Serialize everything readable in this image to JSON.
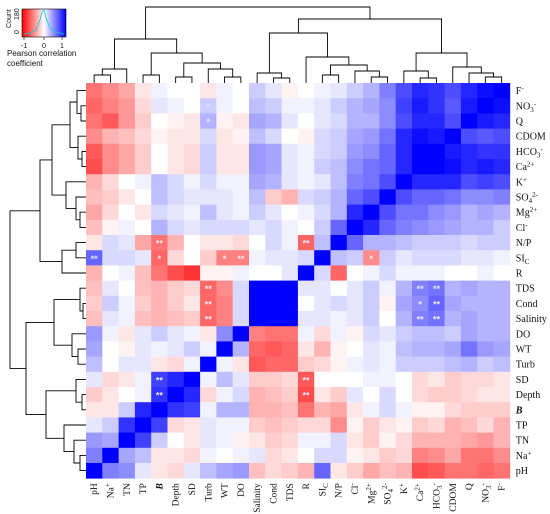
{
  "chart_data": {
    "type": "heatmap",
    "title": "",
    "color_key": {
      "title": "Pearson correlation coefficient",
      "title_lines": [
        "Pearson correlation",
        "coefficient"
      ],
      "y_label": "Count",
      "y_ticks": [
        "0",
        "180"
      ],
      "ticks": [
        "-1",
        "0",
        "1"
      ],
      "range": [
        -1,
        1
      ],
      "colors": {
        "neg": "#ff0000",
        "mid": "#ffffff",
        "pos": "#0000ff"
      }
    },
    "row_labels": [
      "F⁻",
      "NO₃⁻",
      "Q",
      "CDOM",
      "HCO₃⁻",
      "Ca²⁺",
      "K⁺",
      "SO₄²⁻",
      "Mg²⁺",
      "Cl⁻",
      "N/P",
      "SI_C",
      "R",
      "TDS",
      "Cond",
      "Salinity",
      "DO",
      "WT",
      "Turb",
      "SD",
      "Depth",
      "B",
      "TP",
      "TN",
      "Na⁺",
      "pH"
    ],
    "row_label_parts": [
      [
        "F",
        "-",
        ""
      ],
      [
        "NO",
        "-",
        "3"
      ],
      [
        "Q",
        "",
        ""
      ],
      [
        "CDOM",
        "",
        ""
      ],
      [
        "HCO",
        "-",
        "3"
      ],
      [
        "Ca",
        "2+",
        ""
      ],
      [
        "K",
        "+",
        ""
      ],
      [
        "SO",
        "2-",
        "4"
      ],
      [
        "Mg",
        "2+",
        ""
      ],
      [
        "Cl",
        "-",
        ""
      ],
      [
        "N/P",
        "",
        ""
      ],
      [
        "SI",
        "",
        "C"
      ],
      [
        "R",
        "",
        ""
      ],
      [
        "TDS",
        "",
        ""
      ],
      [
        "Cond",
        "",
        ""
      ],
      [
        "Salinity",
        "",
        ""
      ],
      [
        "DO",
        "",
        ""
      ],
      [
        "WT",
        "",
        ""
      ],
      [
        "Turb",
        "",
        ""
      ],
      [
        "SD",
        "",
        ""
      ],
      [
        "Depth",
        "",
        ""
      ],
      [
        "B",
        "",
        ""
      ],
      [
        "TP",
        "",
        ""
      ],
      [
        "TN",
        "",
        ""
      ],
      [
        "Na",
        "+",
        ""
      ],
      [
        "pH",
        "",
        ""
      ]
    ],
    "col_labels": [
      "pH",
      "Na⁺",
      "TN",
      "TP",
      "B",
      "Depth",
      "SD",
      "Turb",
      "WT",
      "DO",
      "Salinity",
      "Cond",
      "TDS",
      "R",
      "SI_C",
      "N/P",
      "Cl⁻",
      "Mg²⁺",
      "SO₄²⁻",
      "K⁺",
      "Ca²⁺",
      "HCO₃⁻",
      "CDOM",
      "Q",
      "NO₃⁻",
      "F⁻"
    ],
    "col_label_parts": [
      [
        "pH",
        "",
        ""
      ],
      [
        "Na",
        "+",
        ""
      ],
      [
        "TN",
        "",
        ""
      ],
      [
        "TP",
        "",
        ""
      ],
      [
        "B",
        "",
        ""
      ],
      [
        "Depth",
        "",
        ""
      ],
      [
        "SD",
        "",
        ""
      ],
      [
        "Turb",
        "",
        ""
      ],
      [
        "WT",
        "",
        ""
      ],
      [
        "DO",
        "",
        ""
      ],
      [
        "Salinity",
        "",
        ""
      ],
      [
        "Cond",
        "",
        ""
      ],
      [
        "TDS",
        "",
        ""
      ],
      [
        "R",
        "",
        ""
      ],
      [
        "SI",
        "",
        "C"
      ],
      [
        "N/P",
        "",
        ""
      ],
      [
        "Cl",
        "-",
        ""
      ],
      [
        "Mg",
        "2+",
        ""
      ],
      [
        "SO",
        "2-",
        "4"
      ],
      [
        "K",
        "+",
        ""
      ],
      [
        "Ca",
        "2+",
        ""
      ],
      [
        "HCO",
        "-",
        "3"
      ],
      [
        "CDOM",
        "",
        ""
      ],
      [
        "Q",
        "",
        ""
      ],
      [
        "NO",
        "-",
        "3"
      ],
      [
        "F",
        "-",
        ""
      ]
    ],
    "special_labels": {
      "B": "#1a1aa8",
      "R": "#cc1111"
    },
    "values": [
      [
        -0.55,
        -0.45,
        -0.35,
        -0.1,
        0.05,
        0.0,
        0.0,
        -0.1,
        0.05,
        0.0,
        0.2,
        0.1,
        -0.05,
        0.0,
        0.05,
        0.1,
        0.2,
        0.3,
        0.5,
        0.7,
        0.85,
        0.8,
        0.7,
        0.85,
        0.95,
        1.0
      ],
      [
        -0.6,
        -0.5,
        -0.4,
        -0.15,
        0.1,
        0.05,
        0.0,
        0.2,
        0.05,
        0.0,
        0.25,
        0.2,
        0.05,
        0.05,
        0.1,
        0.2,
        0.3,
        0.35,
        0.45,
        0.75,
        0.9,
        0.8,
        0.65,
        0.9,
        1.0,
        0.95
      ],
      [
        -0.55,
        -0.65,
        -0.4,
        -0.2,
        0.0,
        -0.05,
        -0.1,
        0.3,
        -0.05,
        -0.1,
        0.35,
        0.3,
        0.1,
        0.0,
        0.1,
        0.15,
        0.3,
        0.3,
        0.45,
        0.7,
        0.85,
        0.85,
        0.7,
        1.0,
        0.9,
        0.85
      ],
      [
        -0.45,
        -0.3,
        -0.25,
        -0.15,
        -0.05,
        -0.1,
        -0.1,
        0.15,
        -0.1,
        -0.05,
        0.25,
        0.15,
        0.0,
        -0.05,
        0.15,
        0.2,
        0.35,
        0.4,
        0.55,
        0.85,
        0.95,
        0.9,
        1.0,
        0.7,
        0.65,
        0.7
      ],
      [
        -0.65,
        -0.45,
        -0.35,
        -0.2,
        0.0,
        -0.1,
        -0.15,
        0.2,
        -0.1,
        -0.1,
        0.4,
        0.35,
        0.1,
        0.05,
        0.15,
        0.2,
        0.4,
        0.45,
        0.6,
        0.85,
        1.0,
        1.0,
        0.9,
        0.85,
        0.8,
        0.8
      ],
      [
        -0.7,
        -0.45,
        -0.35,
        -0.2,
        0.0,
        -0.1,
        -0.15,
        0.2,
        -0.1,
        -0.1,
        0.4,
        0.35,
        0.1,
        0.05,
        0.2,
        0.25,
        0.45,
        0.55,
        0.6,
        0.85,
        1.0,
        1.0,
        0.95,
        0.85,
        0.9,
        0.85
      ],
      [
        -0.3,
        -0.15,
        0.0,
        0.05,
        0.25,
        0.15,
        0.05,
        0.15,
        0.05,
        0.05,
        0.35,
        0.3,
        0.1,
        0.05,
        0.1,
        0.25,
        0.5,
        0.55,
        0.7,
        1.0,
        0.85,
        0.85,
        0.85,
        0.7,
        0.75,
        0.7
      ],
      [
        -0.25,
        -0.2,
        -0.1,
        0.0,
        0.25,
        0.15,
        0.1,
        0.1,
        0.1,
        0.05,
        0.25,
        -0.2,
        -0.3,
        0.15,
        0.2,
        0.3,
        0.6,
        0.7,
        1.0,
        0.7,
        0.6,
        0.6,
        0.55,
        0.45,
        0.45,
        0.5
      ],
      [
        -0.35,
        -0.15,
        0.0,
        -0.1,
        0.15,
        0.1,
        0.05,
        0.25,
        0.1,
        0.05,
        0.2,
        0.1,
        0.0,
        0.05,
        0.15,
        0.3,
        0.85,
        1.0,
        0.7,
        0.55,
        0.55,
        0.45,
        0.4,
        0.3,
        0.35,
        0.3
      ],
      [
        -0.25,
        -0.05,
        0.05,
        0.0,
        0.3,
        0.15,
        0.1,
        0.15,
        0.15,
        0.15,
        0.1,
        0.15,
        0.05,
        0.0,
        0.2,
        0.6,
        1.0,
        0.85,
        0.6,
        0.5,
        0.45,
        0.4,
        0.35,
        0.3,
        0.3,
        0.2
      ],
      [
        -0.1,
        0.15,
        0.1,
        -0.35,
        -0.55,
        -0.3,
        0.0,
        -0.1,
        -0.1,
        -0.15,
        0.0,
        0.15,
        0.05,
        -0.6,
        0.25,
        1.0,
        0.6,
        0.3,
        0.3,
        0.25,
        0.2,
        0.2,
        0.2,
        0.15,
        0.2,
        0.2
      ],
      [
        0.6,
        0.15,
        0.15,
        0.1,
        -0.6,
        -0.15,
        0.0,
        -0.2,
        -0.5,
        -0.5,
        0.05,
        0.1,
        0.1,
        0.15,
        1.0,
        0.25,
        0.2,
        -0.45,
        0.2,
        0.1,
        0.15,
        0.15,
        0.15,
        0.1,
        0.1,
        0.05
      ],
      [
        -0.3,
        0.0,
        0.05,
        -0.25,
        -0.55,
        -0.7,
        -0.8,
        -0.05,
        -0.05,
        0.05,
        0.0,
        0.0,
        0.1,
        1.0,
        0.15,
        -0.6,
        0.0,
        0.05,
        0.15,
        0.05,
        0.05,
        0.05,
        0.0,
        0.0,
        0.05,
        0.0
      ],
      [
        -0.25,
        0.1,
        0.0,
        -0.25,
        -0.3,
        -0.2,
        -0.15,
        -0.6,
        -0.45,
        0.15,
        1.0,
        1.0,
        1.0,
        0.1,
        0.1,
        0.0,
        0.1,
        0.2,
        0.05,
        0.3,
        0.5,
        0.55,
        0.3,
        0.35,
        0.3,
        0.3
      ],
      [
        -0.2,
        0.2,
        0.05,
        -0.2,
        -0.3,
        -0.2,
        -0.1,
        -0.6,
        -0.5,
        0.15,
        1.0,
        1.0,
        1.0,
        0.0,
        0.1,
        0.15,
        0.1,
        0.2,
        -0.05,
        0.35,
        0.45,
        0.6,
        0.35,
        0.3,
        0.3,
        0.3
      ],
      [
        -0.25,
        0.1,
        0.05,
        -0.25,
        -0.3,
        -0.25,
        -0.2,
        -0.6,
        -0.5,
        0.15,
        1.0,
        1.0,
        1.0,
        0.1,
        0.1,
        0.05,
        0.1,
        0.2,
        0.0,
        0.3,
        0.5,
        0.55,
        0.3,
        0.35,
        0.3,
        0.3
      ],
      [
        0.4,
        0.05,
        -0.1,
        0.1,
        0.2,
        0.1,
        0.05,
        -0.1,
        0.45,
        1.0,
        -0.5,
        -0.55,
        -0.55,
        0.05,
        -0.15,
        0.05,
        -0.05,
        0.15,
        0.1,
        0.2,
        0.25,
        0.25,
        0.2,
        0.35,
        0.3,
        0.3
      ],
      [
        0.35,
        0.0,
        -0.05,
        0.1,
        0.05,
        0.1,
        0.2,
        0.05,
        1.0,
        0.3,
        -0.6,
        -0.65,
        -0.6,
        -0.1,
        -0.3,
        -0.05,
        0.0,
        0.1,
        0.05,
        0.25,
        0.3,
        0.3,
        0.35,
        0.55,
        0.4,
        0.35
      ],
      [
        0.25,
        0.0,
        0.1,
        0.1,
        -0.1,
        -0.15,
        0.05,
        1.0,
        0.05,
        -0.1,
        -0.65,
        -0.6,
        -0.6,
        -0.2,
        -0.15,
        -0.05,
        0.05,
        0.1,
        0.05,
        0.2,
        0.2,
        0.2,
        0.25,
        0.3,
        0.2,
        0.25
      ],
      [
        0.1,
        -0.15,
        -0.1,
        0.05,
        0.75,
        0.85,
        1.0,
        0.05,
        0.25,
        0.1,
        -0.2,
        -0.2,
        -0.15,
        -0.65,
        0.0,
        0.0,
        0.0,
        0.05,
        0.05,
        0.0,
        -0.15,
        -0.1,
        -0.2,
        -0.15,
        -0.15,
        -0.1
      ],
      [
        -0.2,
        -0.1,
        0.0,
        0.05,
        0.8,
        1.0,
        0.85,
        -0.15,
        0.05,
        0.15,
        -0.3,
        -0.25,
        -0.2,
        -0.7,
        -0.1,
        -0.2,
        0.1,
        0.0,
        0.15,
        0.0,
        -0.15,
        -0.2,
        -0.2,
        -0.15,
        -0.1,
        -0.1
      ],
      [
        -0.1,
        -0.1,
        0.2,
        0.85,
        1.0,
        0.8,
        0.75,
        0.05,
        0.3,
        0.3,
        -0.3,
        -0.3,
        -0.25,
        -0.55,
        -0.3,
        -0.35,
        -0.1,
        0.05,
        0.15,
        0.05,
        -0.05,
        -0.05,
        -0.15,
        -0.2,
        -0.2,
        -0.2
      ],
      [
        0.1,
        0.2,
        0.8,
        1.0,
        0.75,
        -0.15,
        -0.1,
        0.1,
        0.05,
        0.05,
        -0.2,
        -0.25,
        -0.2,
        -0.15,
        -0.15,
        -0.45,
        -0.05,
        -0.2,
        -0.1,
        -0.05,
        -0.2,
        -0.15,
        -0.3,
        -0.25,
        -0.15,
        -0.3
      ],
      [
        0.4,
        0.35,
        1.0,
        0.75,
        0.2,
        0.0,
        -0.1,
        0.1,
        0.05,
        -0.05,
        -0.1,
        -0.2,
        -0.15,
        0.05,
        0.05,
        0.15,
        -0.1,
        -0.2,
        -0.05,
        -0.15,
        -0.3,
        -0.3,
        -0.3,
        -0.35,
        -0.4,
        -0.3
      ],
      [
        0.5,
        1.0,
        0.35,
        0.25,
        -0.1,
        -0.1,
        -0.15,
        0.05,
        0.0,
        0.05,
        0.1,
        -0.15,
        -0.1,
        0.0,
        0.15,
        0.15,
        -0.05,
        -0.1,
        -0.2,
        -0.15,
        -0.5,
        -0.45,
        -0.35,
        -0.55,
        -0.55,
        -0.45
      ],
      [
        1.0,
        0.5,
        0.45,
        0.1,
        -0.1,
        -0.15,
        0.1,
        0.25,
        0.35,
        0.4,
        -0.25,
        -0.15,
        -0.2,
        -0.3,
        0.6,
        -0.1,
        -0.2,
        -0.35,
        -0.25,
        -0.3,
        -0.7,
        -0.65,
        -0.55,
        -0.55,
        -0.6,
        -0.55
      ]
    ],
    "annotations": [
      {
        "row": 1,
        "col": 7,
        "text": "*"
      },
      {
        "row": 2,
        "col": 7,
        "text": "*"
      },
      {
        "row": 10,
        "col": 4,
        "text": "**"
      },
      {
        "row": 10,
        "col": 13,
        "text": "**"
      },
      {
        "row": 11,
        "col": 0,
        "text": "**"
      },
      {
        "row": 11,
        "col": 4,
        "text": "*"
      },
      {
        "row": 11,
        "col": 8,
        "text": "*"
      },
      {
        "row": 11,
        "col": 9,
        "text": "**"
      },
      {
        "row": 11,
        "col": 17,
        "text": "*"
      },
      {
        "row": 13,
        "col": 7,
        "text": "**"
      },
      {
        "row": 13,
        "col": 20,
        "text": "**"
      },
      {
        "row": 13,
        "col": 21,
        "text": "**"
      },
      {
        "row": 14,
        "col": 7,
        "text": "**"
      },
      {
        "row": 14,
        "col": 20,
        "text": "*"
      },
      {
        "row": 14,
        "col": 21,
        "text": "**"
      },
      {
        "row": 15,
        "col": 7,
        "text": "**"
      },
      {
        "row": 15,
        "col": 20,
        "text": "**"
      },
      {
        "row": 15,
        "col": 21,
        "text": "**"
      },
      {
        "row": 19,
        "col": 4,
        "text": "**"
      },
      {
        "row": 19,
        "col": 13,
        "text": "**"
      },
      {
        "row": 20,
        "col": 4,
        "text": "**"
      },
      {
        "row": 20,
        "col": 13,
        "text": "**"
      }
    ],
    "grid": false,
    "legend_placement": "top-left"
  }
}
